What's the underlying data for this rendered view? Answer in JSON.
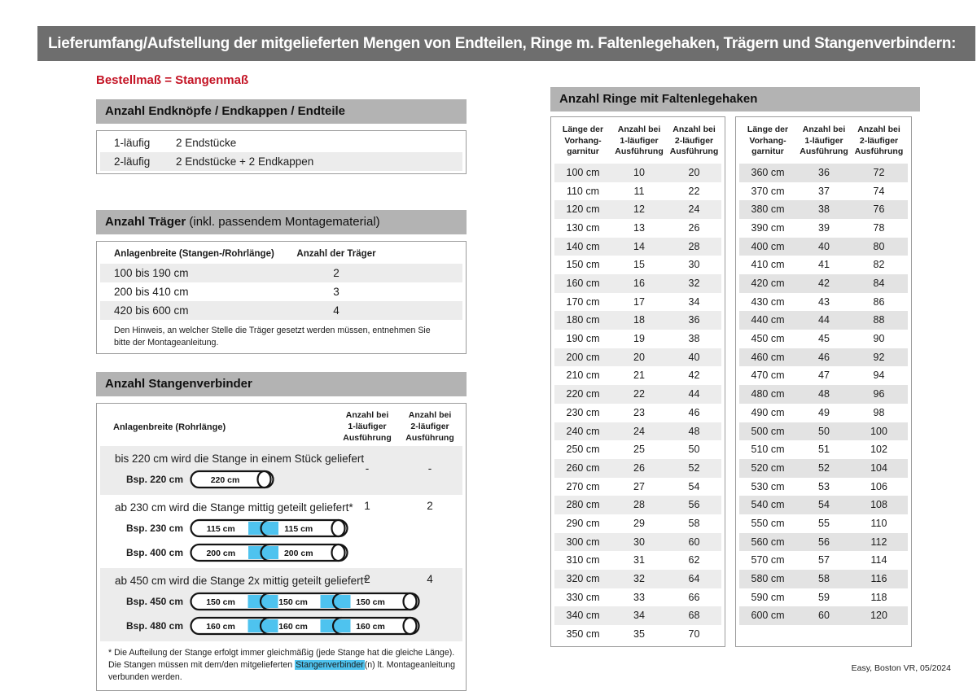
{
  "banner": {
    "title": "Lieferumfang/Aufstellung der mitgelieferten Mengen von Endteilen, Ringe m. Faltenlegehaken, Trägern und Stangenverbindern:"
  },
  "colors": {
    "banner_bg": "#6e6e6e",
    "section_header_bg": "#b3b3b3",
    "row_shade": "#ececec",
    "row_shade_dark": "#e3e3e3",
    "accent_red": "#c41425",
    "connector_blue": "#4ec3ef"
  },
  "left": {
    "note": "Bestellmaß = Stangenmaß",
    "endteile": {
      "header": "Anzahl Endknöpfe / Endkappen / Endteile",
      "rows": [
        {
          "label": "1-läufig",
          "value": "2 Endstücke"
        },
        {
          "label": "2-läufig",
          "value": "2 Endstücke + 2 Endkappen"
        }
      ]
    },
    "traeger": {
      "header_bold": "Anzahl Träger",
      "header_rest": " (inkl. passendem Montagematerial)",
      "col1": "Anlagenbreite (Stangen-/Rohrlänge)",
      "col2": "Anzahl der Träger",
      "rows": [
        {
          "range": "100 bis 190 cm",
          "count": "2"
        },
        {
          "range": "200 bis 410 cm",
          "count": "3"
        },
        {
          "range": "420 bis 600 cm",
          "count": "4"
        }
      ],
      "note": "Den Hinweis, an welcher Stelle die Träger gesetzt werden müssen, entnehmen Sie bitte der Montageanleitung."
    },
    "verbinder": {
      "header": "Anzahl Stangenverbinder",
      "col1": "Anlagenbreite (Rohrlänge)",
      "col2": "Anzahl bei\n1-läufiger\nAusführung",
      "col3": "Anzahl bei\n2-läufiger\nAusführung",
      "groups": [
        {
          "text": "bis 220 cm wird die Stange in einem Stück geliefert",
          "v1": "-",
          "v2": "-",
          "examples": [
            {
              "label": "Bsp. 220 cm",
              "segments": [
                "220 cm"
              ]
            }
          ]
        },
        {
          "text": "ab 230 cm wird die Stange mittig geteilt geliefert*",
          "v1": "1",
          "v2": "2",
          "examples": [
            {
              "label": "Bsp. 230 cm",
              "segments": [
                "115 cm",
                "115 cm"
              ]
            },
            {
              "label": "Bsp. 400 cm",
              "segments": [
                "200 cm",
                "200 cm"
              ]
            }
          ]
        },
        {
          "text": "ab 450 cm wird die Stange 2x mittig geteilt geliefert*",
          "v1": "2",
          "v2": "4",
          "examples": [
            {
              "label": "Bsp. 450 cm",
              "segments": [
                "150 cm",
                "150 cm",
                "150 cm"
              ]
            },
            {
              "label": "Bsp. 480 cm",
              "segments": [
                "160 cm",
                "160 cm",
                "160 cm"
              ]
            }
          ]
        }
      ],
      "footnote_pre": "* Die Aufteilung der Stange erfolgt immer gleichmäßig (jede Stange hat die gleiche Länge). Die Stangen müssen mit dem/den mitgelieferten ",
      "footnote_highlight": "Stangenverbinder",
      "footnote_post": "(n) lt. Montageanleitung verbunden werden."
    }
  },
  "right": {
    "header": "Anzahl Ringe mit Faltenlegehaken",
    "col_headers": [
      "Länge der\nVorhang-\ngarnitur",
      "Anzahl bei\n1-läufiger\nAusführung",
      "Anzahl bei\n2-läufiger\nAusführung"
    ],
    "tables": [
      {
        "rows": [
          [
            "100 cm",
            "10",
            "20"
          ],
          [
            "110 cm",
            "11",
            "22"
          ],
          [
            "120 cm",
            "12",
            "24"
          ],
          [
            "130 cm",
            "13",
            "26"
          ],
          [
            "140 cm",
            "14",
            "28"
          ],
          [
            "150 cm",
            "15",
            "30"
          ],
          [
            "160 cm",
            "16",
            "32"
          ],
          [
            "170 cm",
            "17",
            "34"
          ],
          [
            "180 cm",
            "18",
            "36"
          ],
          [
            "190 cm",
            "19",
            "38"
          ],
          [
            "200 cm",
            "20",
            "40"
          ],
          [
            "210 cm",
            "21",
            "42"
          ],
          [
            "220 cm",
            "22",
            "44"
          ],
          [
            "230 cm",
            "23",
            "46"
          ],
          [
            "240 cm",
            "24",
            "48"
          ],
          [
            "250 cm",
            "25",
            "50"
          ],
          [
            "260 cm",
            "26",
            "52"
          ],
          [
            "270 cm",
            "27",
            "54"
          ],
          [
            "280 cm",
            "28",
            "56"
          ],
          [
            "290 cm",
            "29",
            "58"
          ],
          [
            "300 cm",
            "30",
            "60"
          ],
          [
            "310 cm",
            "31",
            "62"
          ],
          [
            "320 cm",
            "32",
            "64"
          ],
          [
            "330 cm",
            "33",
            "66"
          ],
          [
            "340 cm",
            "34",
            "68"
          ],
          [
            "350 cm",
            "35",
            "70"
          ]
        ]
      },
      {
        "rows": [
          [
            "360 cm",
            "36",
            "72"
          ],
          [
            "370 cm",
            "37",
            "74"
          ],
          [
            "380 cm",
            "38",
            "76"
          ],
          [
            "390 cm",
            "39",
            "78"
          ],
          [
            "400 cm",
            "40",
            "80"
          ],
          [
            "410 cm",
            "41",
            "82"
          ],
          [
            "420 cm",
            "42",
            "84"
          ],
          [
            "430 cm",
            "43",
            "86"
          ],
          [
            "440 cm",
            "44",
            "88"
          ],
          [
            "450 cm",
            "45",
            "90"
          ],
          [
            "460 cm",
            "46",
            "92"
          ],
          [
            "470 cm",
            "47",
            "94"
          ],
          [
            "480 cm",
            "48",
            "96"
          ],
          [
            "490 cm",
            "49",
            "98"
          ],
          [
            "500 cm",
            "50",
            "100"
          ],
          [
            "510 cm",
            "51",
            "102"
          ],
          [
            "520 cm",
            "52",
            "104"
          ],
          [
            "530 cm",
            "53",
            "106"
          ],
          [
            "540 cm",
            "54",
            "108"
          ],
          [
            "550 cm",
            "55",
            "110"
          ],
          [
            "560 cm",
            "56",
            "112"
          ],
          [
            "570 cm",
            "57",
            "114"
          ],
          [
            "580 cm",
            "58",
            "116"
          ],
          [
            "590 cm",
            "59",
            "118"
          ],
          [
            "600 cm",
            "60",
            "120"
          ]
        ]
      }
    ]
  },
  "footer": {
    "text": "Easy, Boston VR, 05/2024"
  }
}
